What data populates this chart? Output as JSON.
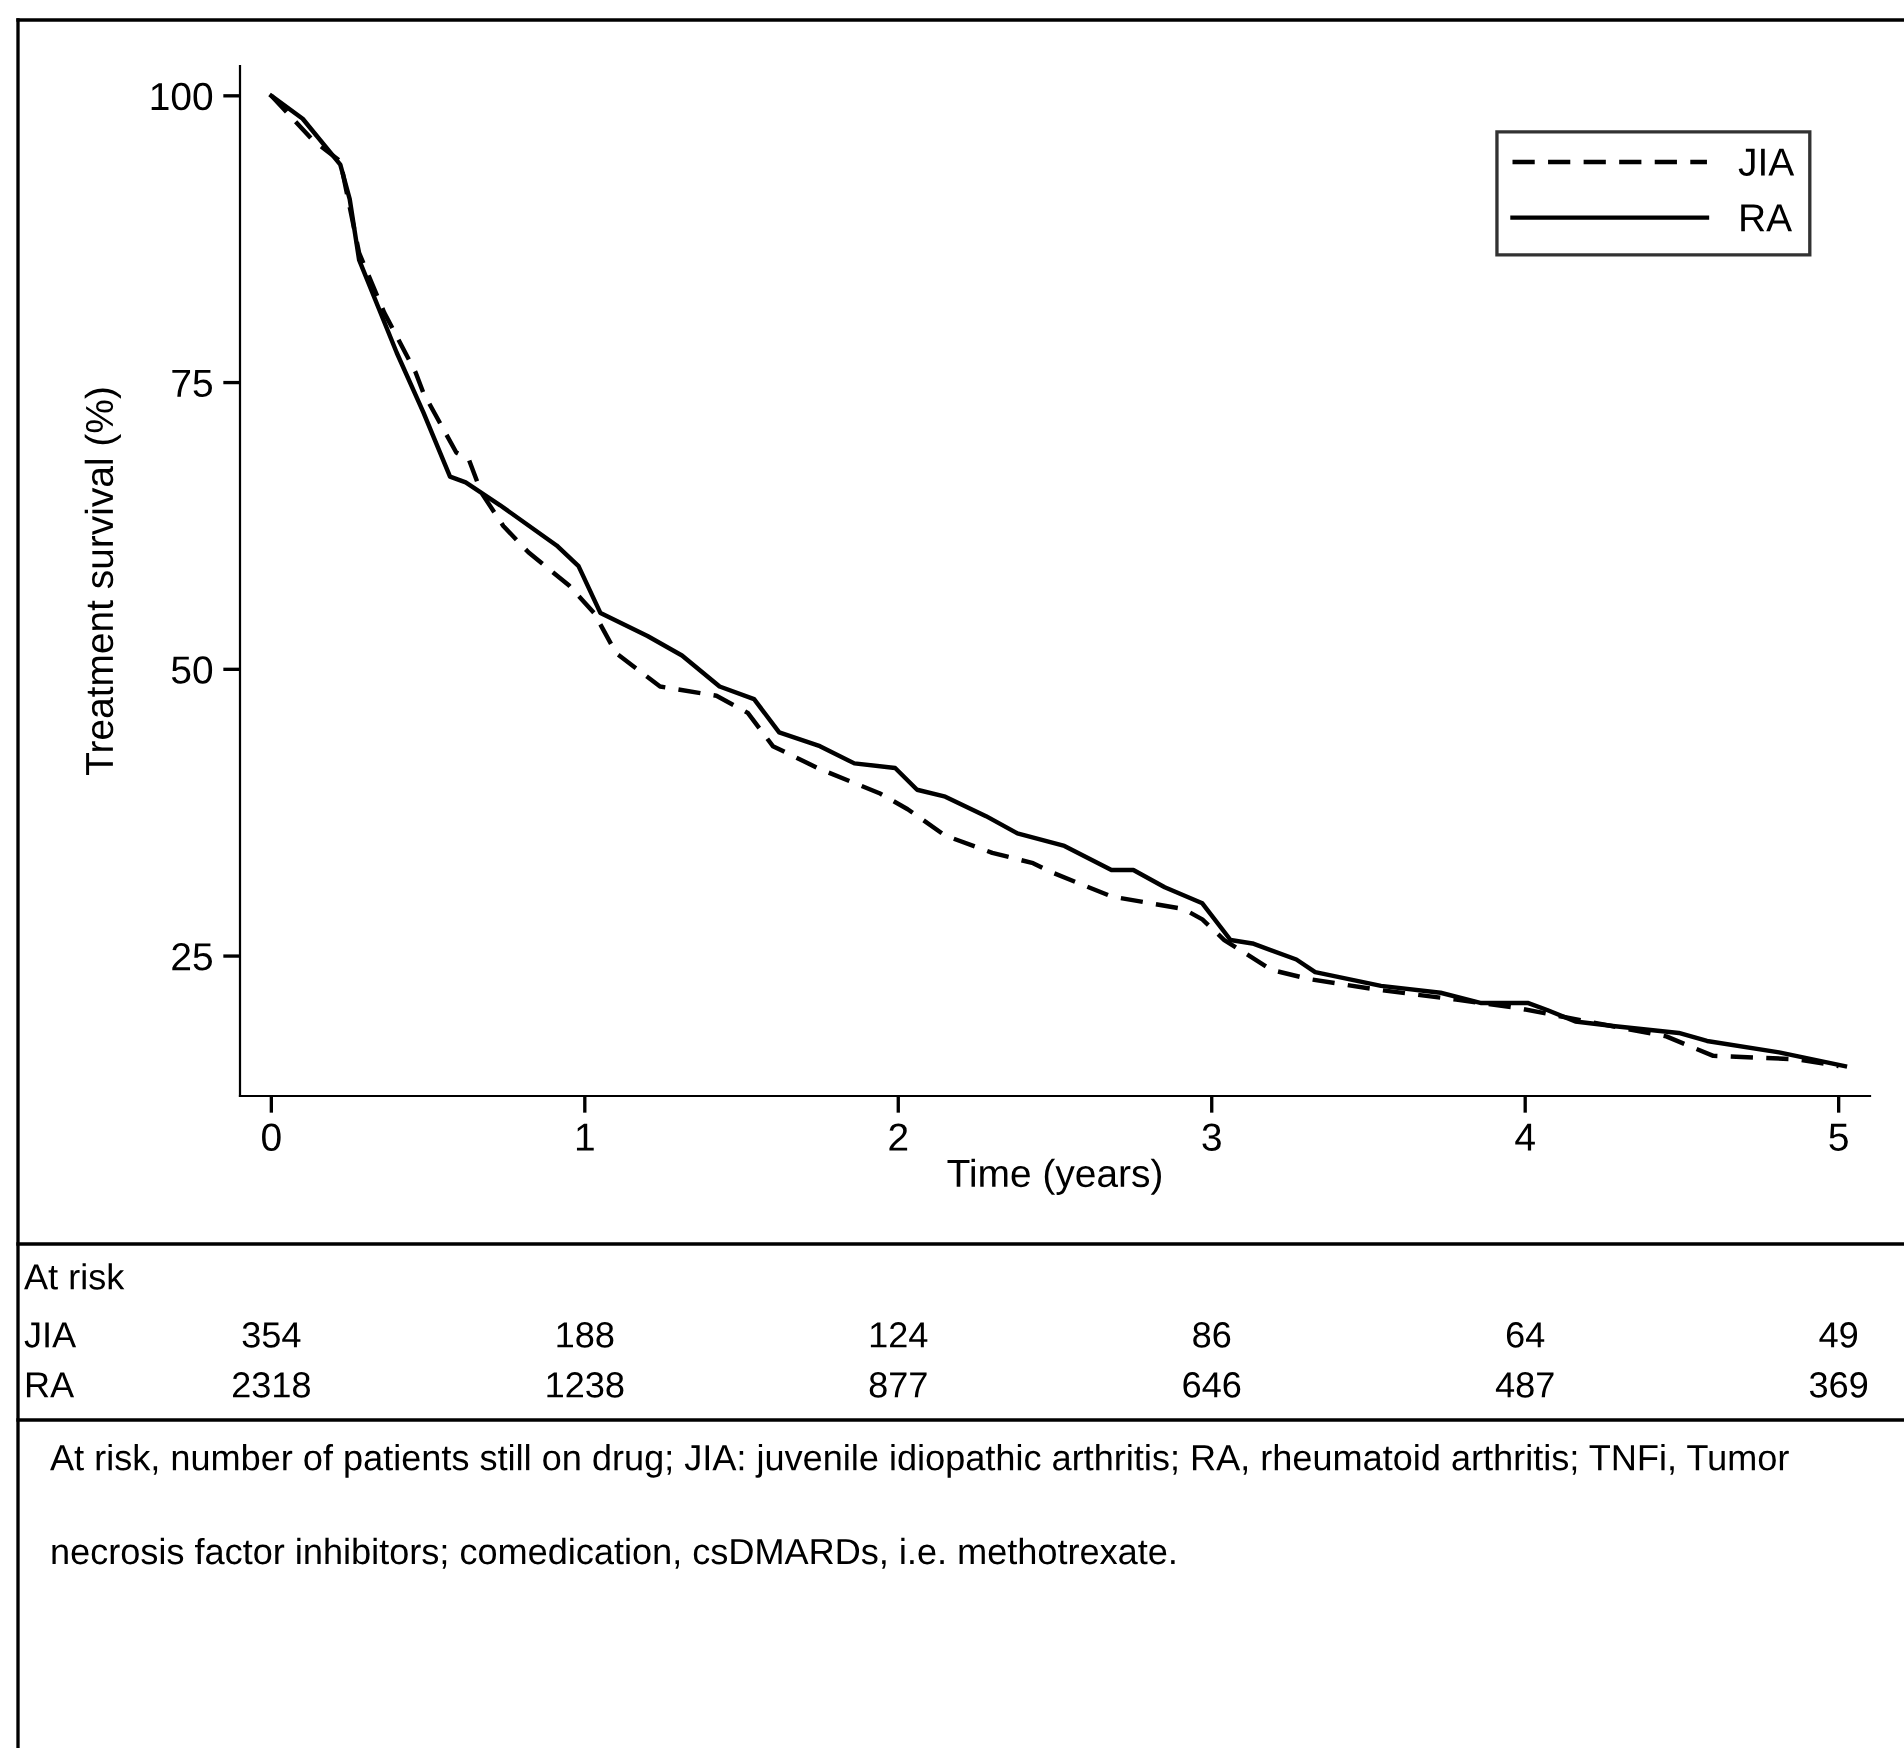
{
  "chart_data": {
    "type": "line",
    "ylabel": "Treatment survival (%)",
    "xlabel": "Time (years)",
    "xlim": [
      -0.1,
      5.1
    ],
    "ylim": [
      12.8,
      102.6
    ],
    "xticks": [
      0,
      1,
      2,
      3,
      4,
      5
    ],
    "yticks": [
      25,
      50,
      75,
      100
    ],
    "grid": false,
    "legend": "top right",
    "series": [
      {
        "name": "JIA",
        "color": "#000000",
        "line_style": "dashed",
        "x": [
          0,
          0.13,
          0.22,
          0.28,
          0.36,
          0.46,
          0.485,
          0.59,
          0.63,
          0.67,
          0.74,
          0.82,
          0.95,
          1.03,
          1.1,
          1.24,
          1.42,
          1.52,
          1.6,
          1.75,
          1.94,
          2.03,
          2.15,
          2.3,
          2.43,
          2.49,
          2.68,
          2.91,
          2.97,
          3.04,
          3.19,
          3.31,
          3.52,
          3.78,
          3.97,
          4.16,
          4.45,
          4.6,
          4.87,
          5.0
        ],
        "values": [
          100,
          96.2,
          94.3,
          86.3,
          81.1,
          75.9,
          74.1,
          68.9,
          68.3,
          65.4,
          62.5,
          60.2,
          57.3,
          54.9,
          51.4,
          48.5,
          47.7,
          46.2,
          43.3,
          41.3,
          39.2,
          37.8,
          35.5,
          34.0,
          33.1,
          32.3,
          30.2,
          29.1,
          28.2,
          26.4,
          23.8,
          23.0,
          22.1,
          21.2,
          20.5,
          19.5,
          18.0,
          16.3,
          16.0,
          15.4
        ]
      },
      {
        "name": "RA",
        "color": "#000000",
        "line_style": "solid",
        "x": [
          0,
          0.1,
          0.22,
          0.25,
          0.28,
          0.4,
          0.485,
          0.57,
          0.62,
          0.73,
          0.91,
          0.98,
          1.05,
          1.2,
          1.31,
          1.43,
          1.54,
          1.62,
          1.75,
          1.86,
          1.99,
          2.06,
          2.15,
          2.28,
          2.38,
          2.53,
          2.68,
          2.75,
          2.85,
          2.97,
          3.06,
          3.13,
          3.27,
          3.33,
          3.54,
          3.73,
          3.86,
          4.01,
          4.07,
          4.16,
          4.28,
          4.49,
          4.58,
          4.81,
          5.02
        ],
        "values": [
          100,
          98,
          94,
          91,
          85.7,
          77.6,
          72.4,
          66.8,
          66.3,
          64.3,
          60.8,
          59,
          54.9,
          52.9,
          51.2,
          48.5,
          47.4,
          44.5,
          43.3,
          41.8,
          41.4,
          39.5,
          38.9,
          37.2,
          35.7,
          34.6,
          32.5,
          32.5,
          31.0,
          29.6,
          26.4,
          26.1,
          24.7,
          23.6,
          22.4,
          21.8,
          20.9,
          20.9,
          20.3,
          19.3,
          18.9,
          18.3,
          17.6,
          16.6,
          15.4
        ]
      }
    ],
    "annotations": [
      "At risk",
      "JIA",
      "354",
      "188",
      "124",
      "86",
      "64",
      "49",
      "RA",
      "2318",
      "1238",
      "877",
      "646",
      "487",
      "369",
      "At risk, number of patients still on drug; JIA: juvenile idiopathic arthritis; RA, rheumatoid arthritis; TNFi, Tumor necrosis factor inhibitors; comedication, csDMARDs, i.e. methotrexate."
    ]
  }
}
